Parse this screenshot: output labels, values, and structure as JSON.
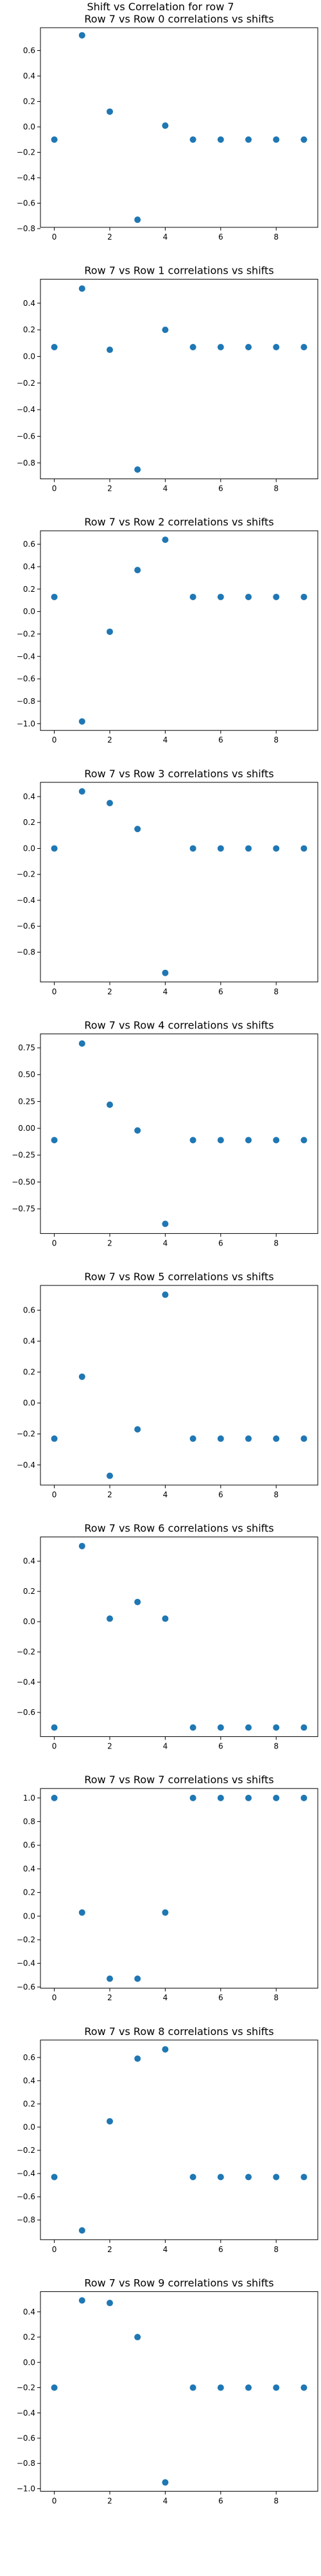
{
  "suptitle": "Shift vs Correlation for row 7",
  "marker_color": "#1f77b4",
  "chart_data": [
    {
      "type": "scatter",
      "title": "Row 7 vs Row 0 correlations vs shifts",
      "x": [
        0,
        1,
        2,
        3,
        4,
        5,
        6,
        7,
        8,
        9
      ],
      "y": [
        -0.1,
        0.72,
        0.12,
        -0.73,
        0.01,
        -0.1,
        -0.1,
        -0.1,
        -0.1,
        -0.1
      ],
      "xlim": [
        -0.5,
        9.5
      ],
      "ylim": [
        -0.79,
        0.78
      ],
      "xticks": [
        0,
        2,
        4,
        6,
        8
      ],
      "yticks": [
        0.6,
        0.4,
        0.2,
        0.0,
        -0.2,
        -0.4,
        -0.6,
        -0.8
      ],
      "ytick_labels": [
        "0.6",
        "0.4",
        "0.2",
        "0.0",
        "−0.2",
        "−0.4",
        "−0.6",
        "−0.8"
      ],
      "grid": false
    },
    {
      "type": "scatter",
      "title": "Row 7 vs Row 1 correlations vs shifts",
      "x": [
        0,
        1,
        2,
        3,
        4,
        5,
        6,
        7,
        8,
        9
      ],
      "y": [
        0.07,
        0.51,
        0.05,
        -0.85,
        0.2,
        0.07,
        0.07,
        0.07,
        0.07,
        0.07
      ],
      "xlim": [
        -0.5,
        9.5
      ],
      "ylim": [
        -0.92,
        0.58
      ],
      "xticks": [
        0,
        2,
        4,
        6,
        8
      ],
      "yticks": [
        0.4,
        0.2,
        0.0,
        -0.2,
        -0.4,
        -0.6,
        -0.8
      ],
      "ytick_labels": [
        "0.4",
        "0.2",
        "0.0",
        "−0.2",
        "−0.4",
        "−0.6",
        "−0.8"
      ],
      "grid": false
    },
    {
      "type": "scatter",
      "title": "Row 7 vs Row 2 correlations vs shifts",
      "x": [
        0,
        1,
        2,
        3,
        4,
        5,
        6,
        7,
        8,
        9
      ],
      "y": [
        0.13,
        -0.98,
        -0.18,
        0.37,
        0.64,
        0.13,
        0.13,
        0.13,
        0.13,
        0.13
      ],
      "xlim": [
        -0.5,
        9.5
      ],
      "ylim": [
        -1.06,
        0.72
      ],
      "xticks": [
        0,
        2,
        4,
        6,
        8
      ],
      "yticks": [
        0.6,
        0.4,
        0.2,
        0.0,
        -0.2,
        -0.4,
        -0.6,
        -0.8,
        -1.0
      ],
      "ytick_labels": [
        "0.6",
        "0.4",
        "0.2",
        "0.0",
        "−0.2",
        "−0.4",
        "−0.6",
        "−0.8",
        "−1.0"
      ],
      "grid": false
    },
    {
      "type": "scatter",
      "title": "Row 7 vs Row 3 correlations vs shifts",
      "x": [
        0,
        1,
        2,
        3,
        4,
        5,
        6,
        7,
        8,
        9
      ],
      "y": [
        0.0,
        0.44,
        0.35,
        0.15,
        -0.96,
        0.0,
        0.0,
        0.0,
        0.0,
        0.0
      ],
      "xlim": [
        -0.5,
        9.5
      ],
      "ylim": [
        -1.03,
        0.51
      ],
      "xticks": [
        0,
        2,
        4,
        6,
        8
      ],
      "yticks": [
        0.4,
        0.2,
        0.0,
        -0.2,
        -0.4,
        -0.6,
        -0.8
      ],
      "ytick_labels": [
        "0.4",
        "0.2",
        "0.0",
        "−0.2",
        "−0.4",
        "−0.6",
        "−0.8"
      ],
      "grid": false
    },
    {
      "type": "scatter",
      "title": "Row 7 vs Row 4 correlations vs shifts",
      "x": [
        0,
        1,
        2,
        3,
        4,
        5,
        6,
        7,
        8,
        9
      ],
      "y": [
        -0.11,
        0.79,
        0.22,
        -0.02,
        -0.89,
        -0.11,
        -0.11,
        -0.11,
        -0.11,
        -0.11
      ],
      "xlim": [
        -0.5,
        9.5
      ],
      "ylim": [
        -0.98,
        0.88
      ],
      "xticks": [
        0,
        2,
        4,
        6,
        8
      ],
      "yticks": [
        0.75,
        0.5,
        0.25,
        0.0,
        -0.25,
        -0.5,
        -0.75
      ],
      "ytick_labels": [
        "0.75",
        "0.50",
        "0.25",
        "0.00",
        "−0.25",
        "−0.50",
        "−0.75"
      ],
      "grid": false
    },
    {
      "type": "scatter",
      "title": "Row 7 vs Row 5 correlations vs shifts",
      "x": [
        0,
        1,
        2,
        3,
        4,
        5,
        6,
        7,
        8,
        9
      ],
      "y": [
        -0.23,
        0.17,
        -0.47,
        -0.17,
        0.7,
        -0.23,
        -0.23,
        -0.23,
        -0.23,
        -0.23
      ],
      "xlim": [
        -0.5,
        9.5
      ],
      "ylim": [
        -0.53,
        0.76
      ],
      "xticks": [
        0,
        2,
        4,
        6,
        8
      ],
      "yticks": [
        0.6,
        0.4,
        0.2,
        0.0,
        -0.2,
        -0.4
      ],
      "ytick_labels": [
        "0.6",
        "0.4",
        "0.2",
        "0.0",
        "−0.2",
        "−0.4"
      ],
      "grid": false
    },
    {
      "type": "scatter",
      "title": "Row 7 vs Row 6 correlations vs shifts",
      "x": [
        0,
        1,
        2,
        3,
        4,
        5,
        6,
        7,
        8,
        9
      ],
      "y": [
        -0.7,
        0.5,
        0.02,
        0.13,
        0.02,
        -0.7,
        -0.7,
        -0.7,
        -0.7,
        -0.7
      ],
      "xlim": [
        -0.5,
        9.5
      ],
      "ylim": [
        -0.76,
        0.56
      ],
      "xticks": [
        0,
        2,
        4,
        6,
        8
      ],
      "yticks": [
        0.4,
        0.2,
        0.0,
        -0.2,
        -0.4,
        -0.6
      ],
      "ytick_labels": [
        "0.4",
        "0.2",
        "0.0",
        "−0.2",
        "−0.4",
        "−0.6"
      ],
      "grid": false
    },
    {
      "type": "scatter",
      "title": "Row 7 vs Row 7 correlations vs shifts",
      "x": [
        0,
        1,
        2,
        3,
        4,
        5,
        6,
        7,
        8,
        9
      ],
      "y": [
        1.0,
        0.03,
        -0.53,
        -0.53,
        0.03,
        1.0,
        1.0,
        1.0,
        1.0,
        1.0
      ],
      "xlim": [
        -0.5,
        9.5
      ],
      "ylim": [
        -0.61,
        1.08
      ],
      "xticks": [
        0,
        2,
        4,
        6,
        8
      ],
      "yticks": [
        1.0,
        0.8,
        0.6,
        0.4,
        0.2,
        0.0,
        -0.2,
        -0.4,
        -0.6
      ],
      "ytick_labels": [
        "1.0",
        "0.8",
        "0.6",
        "0.4",
        "0.2",
        "0.0",
        "−0.2",
        "−0.4",
        "−0.6"
      ],
      "grid": false
    },
    {
      "type": "scatter",
      "title": "Row 7 vs Row 8 correlations vs shifts",
      "x": [
        0,
        1,
        2,
        3,
        4,
        5,
        6,
        7,
        8,
        9
      ],
      "y": [
        -0.43,
        -0.89,
        0.05,
        0.59,
        0.67,
        -0.43,
        -0.43,
        -0.43,
        -0.43,
        -0.43
      ],
      "xlim": [
        -0.5,
        9.5
      ],
      "ylim": [
        -0.97,
        0.75
      ],
      "xticks": [
        0,
        2,
        4,
        6,
        8
      ],
      "yticks": [
        0.6,
        0.4,
        0.2,
        0.0,
        -0.2,
        -0.4,
        -0.6,
        -0.8
      ],
      "ytick_labels": [
        "0.6",
        "0.4",
        "0.2",
        "0.0",
        "−0.2",
        "−0.4",
        "−0.6",
        "−0.8"
      ],
      "grid": false
    },
    {
      "type": "scatter",
      "title": "Row 7 vs Row 9 correlations vs shifts",
      "x": [
        0,
        1,
        2,
        3,
        4,
        5,
        6,
        7,
        8,
        9
      ],
      "y": [
        -0.2,
        0.49,
        0.47,
        0.2,
        -0.95,
        -0.2,
        -0.2,
        -0.2,
        -0.2,
        -0.2
      ],
      "xlim": [
        -0.5,
        9.5
      ],
      "ylim": [
        -1.02,
        0.56
      ],
      "xticks": [
        0,
        2,
        4,
        6,
        8
      ],
      "yticks": [
        0.4,
        0.2,
        0.0,
        -0.2,
        -0.4,
        -0.6,
        -0.8,
        -1.0
      ],
      "ytick_labels": [
        "0.4",
        "0.2",
        "0.0",
        "−0.2",
        "−0.4",
        "−0.6",
        "−0.8",
        "−1.0"
      ],
      "grid": false
    }
  ]
}
